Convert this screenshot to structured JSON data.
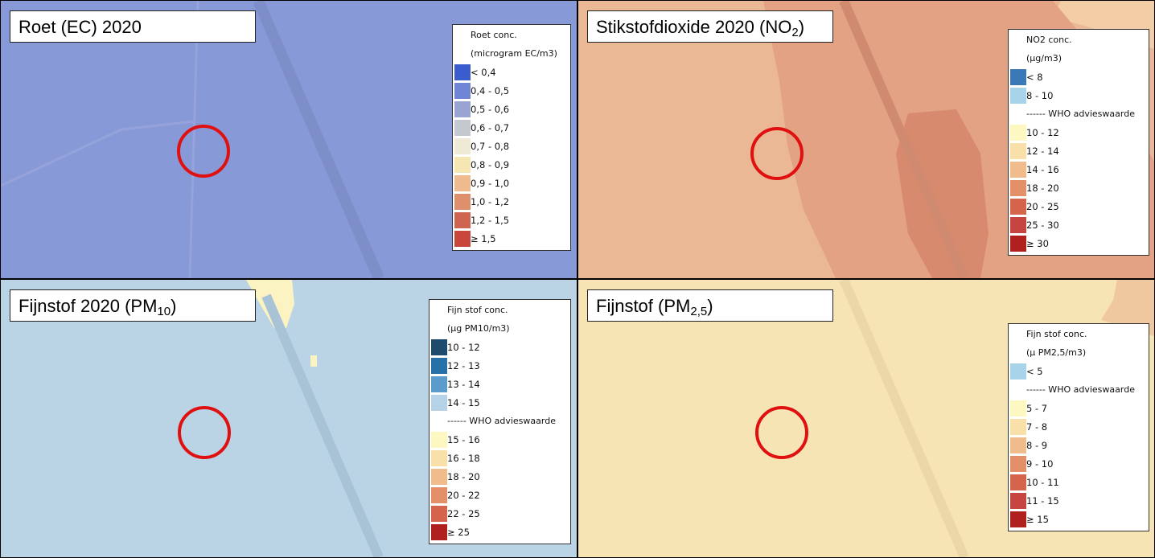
{
  "panels": [
    {
      "title": {
        "text": "Roet (EC) 2020"
      },
      "legend": {
        "lines": [
          "Roet conc.",
          "(microgram EC/m3)"
        ],
        "items": [
          {
            "label": "< 0,4",
            "color": "#3a5ccc"
          },
          {
            "label": "0,4 - 0,5",
            "color": "#6f86d6"
          },
          {
            "label": "0,5 - 0,6",
            "color": "#9aa4d2"
          },
          {
            "label": "0,6 - 0,7",
            "color": "#c5c8cf"
          },
          {
            "label": "0,7 - 0,8",
            "color": "#eeead6"
          },
          {
            "label": "0,8 - 0,9",
            "color": "#f6e7b2"
          },
          {
            "label": "0,9 - 1,0",
            "color": "#efbb8e"
          },
          {
            "label": "1,0 - 1,2",
            "color": "#e08f6c"
          },
          {
            "label": "1,2 - 1,5",
            "color": "#cf6450"
          },
          {
            "label": "≥ 1,5",
            "color": "#c9463d"
          }
        ]
      }
    },
    {
      "title": {
        "text": "Stikstofdioxide 2020 (NO",
        "sub": "2",
        "after": ")"
      },
      "legend": {
        "lines": [
          "NO2 conc.",
          "(µg/m3)"
        ],
        "items": [
          {
            "label": "< 8",
            "color": "#3a78b6"
          },
          {
            "label": "8 - 10",
            "color": "#a8d4ea"
          },
          {
            "label": "------ WHO advieswaarde"
          },
          {
            "label": "10 - 12",
            "color": "#fdf7c2"
          },
          {
            "label": "12 - 14",
            "color": "#f8e0a8"
          },
          {
            "label": "14 - 16",
            "color": "#f0bc8c"
          },
          {
            "label": "18 - 20",
            "color": "#e39068"
          },
          {
            "label": "20 - 25",
            "color": "#d4644c"
          },
          {
            "label": "25 - 30",
            "color": "#c64540"
          },
          {
            "label": "≥ 30",
            "color": "#b0201f"
          }
        ]
      }
    },
    {
      "title": {
        "text": "Fijnstof 2020 (PM",
        "sub": "10",
        "after": ")"
      },
      "legend": {
        "lines": [
          "Fijn stof conc.",
          "(µg PM10/m3)"
        ],
        "items": [
          {
            "label": "10 - 12",
            "color": "#1e4a6e"
          },
          {
            "label": "12 - 13",
            "color": "#2870a8"
          },
          {
            "label": "13 - 14",
            "color": "#5a9ccb"
          },
          {
            "label": "14 - 15",
            "color": "#b5d2e6"
          },
          {
            "label": "------ WHO advieswaarde"
          },
          {
            "label": "15 - 16",
            "color": "#fdf7c2"
          },
          {
            "label": "16 - 18",
            "color": "#f8e0a8"
          },
          {
            "label": "18 - 20",
            "color": "#f0bc8c"
          },
          {
            "label": "20 - 22",
            "color": "#e39068"
          },
          {
            "label": "22 - 25",
            "color": "#d4644c"
          },
          {
            "label": "≥ 25",
            "color": "#b0201f"
          }
        ]
      }
    },
    {
      "title": {
        "text": "Fijnstof (PM",
        "sub": "2,5",
        "after": ")"
      },
      "legend": {
        "lines": [
          "Fijn stof conc.",
          "(µ PM2,5/m3)"
        ],
        "items": [
          {
            "label": "< 5",
            "color": "#a8d4ea"
          },
          {
            "label": "------ WHO advieswaarde"
          },
          {
            "label": "5 - 7",
            "color": "#fdf7c2"
          },
          {
            "label": "7 - 8",
            "color": "#f8e0a8"
          },
          {
            "label": "8 - 9",
            "color": "#f0bc8c"
          },
          {
            "label": "9 - 10",
            "color": "#e39068"
          },
          {
            "label": "10 - 11",
            "color": "#d4644c"
          },
          {
            "label": "11 - 15",
            "color": "#c64540"
          },
          {
            "label": "≥ 15",
            "color": "#b0201f"
          }
        ]
      }
    }
  ]
}
